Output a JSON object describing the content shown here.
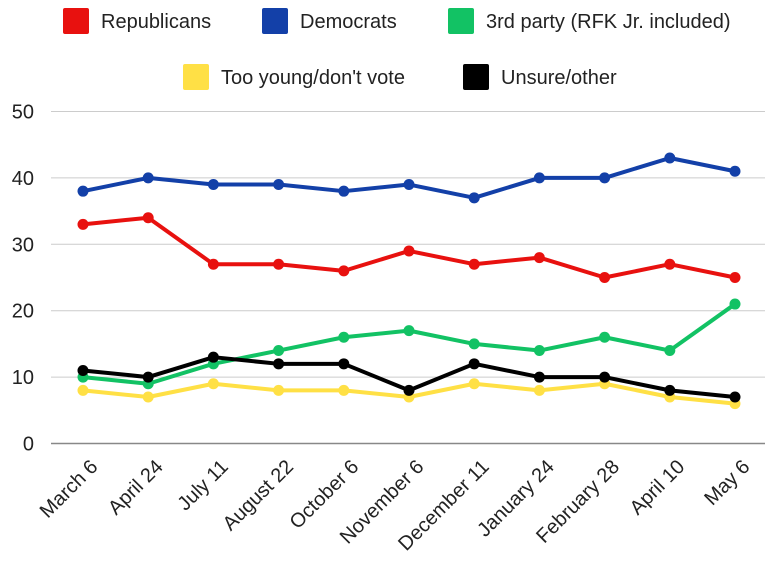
{
  "chart_data": {
    "type": "line",
    "title": "",
    "xlabel": "",
    "ylabel": "",
    "categories": [
      "March 6",
      "April 24",
      "July 11",
      "August 22",
      "October 6",
      "November 6",
      "December 11",
      "January 24",
      "February 28",
      "April 10",
      "May 6"
    ],
    "ylim": [
      0,
      50
    ],
    "yticks": [
      0,
      10,
      20,
      30,
      40,
      50
    ],
    "grid": true,
    "legend_position": "top",
    "series": [
      {
        "name": "Republicans",
        "color": "#e8110f",
        "values": [
          33,
          34,
          27,
          27,
          26,
          29,
          27,
          28,
          25,
          27,
          25
        ]
      },
      {
        "name": "Democrats",
        "color": "#1340a8",
        "values": [
          38,
          40,
          39,
          39,
          38,
          39,
          37,
          40,
          40,
          43,
          41
        ]
      },
      {
        "name": "3rd party (RFK Jr. included)",
        "color": "#12c264",
        "values": [
          10,
          9,
          12,
          14,
          16,
          17,
          15,
          14,
          16,
          14,
          21
        ]
      },
      {
        "name": "Too young/don't vote",
        "color": "#ffe045",
        "values": [
          8,
          7,
          9,
          8,
          8,
          7,
          9,
          8,
          9,
          7,
          6
        ]
      },
      {
        "name": "Unsure/other",
        "color": "#000000",
        "values": [
          11,
          10,
          13,
          12,
          12,
          8,
          12,
          10,
          10,
          8,
          7
        ]
      }
    ]
  }
}
